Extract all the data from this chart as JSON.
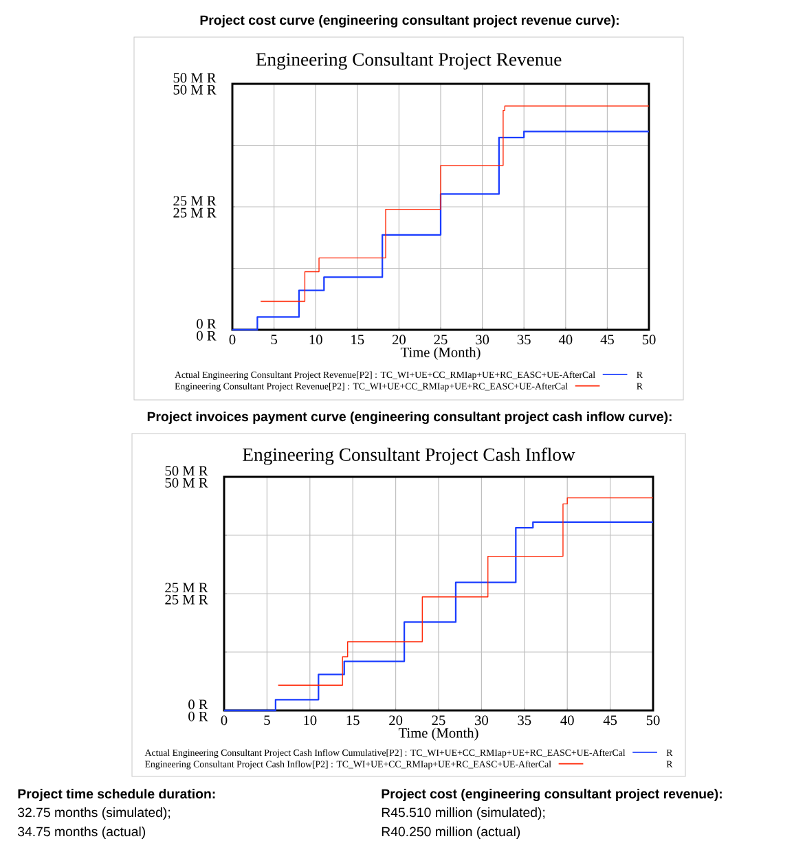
{
  "chart_data": [
    {
      "type": "step",
      "title": "Project cost curve (engineering consultant project revenue curve):",
      "subtitle": "Engineering Consultant Project Revenue",
      "xlabel": "Time (Month)",
      "xlim": [
        0,
        50
      ],
      "xticks": [
        0,
        5,
        10,
        15,
        20,
        25,
        30,
        35,
        40,
        45,
        50
      ],
      "ylim": [
        0,
        50
      ],
      "yticks": [
        {
          "value": 0,
          "label": "0 R"
        },
        {
          "value": 12.5,
          "label": null
        },
        {
          "value": 25,
          "label": "25 M R"
        },
        {
          "value": 37.5,
          "label": null
        },
        {
          "value": 50,
          "label": "50 M R"
        }
      ],
      "y2lim": [
        0,
        50
      ],
      "y2ticks": [
        {
          "value": 0,
          "label": "0 R"
        },
        {
          "value": 12.5,
          "label": null
        },
        {
          "value": 25,
          "label": "25 M R"
        },
        {
          "value": 37.5,
          "label": null
        },
        {
          "value": 50,
          "label": "50 M R"
        }
      ],
      "grid": true,
      "legend": "bottom",
      "annotations": [
        "R",
        "R"
      ],
      "series": [
        {
          "name": "Actual Engineering Consultant Project Revenue[P2] : TC_WI+UE+CC_RMIap+UE+RC_EASC+UE-AfterCal",
          "color": "#1a3cff",
          "axis": "y",
          "x": [
            0,
            3,
            8,
            11,
            18,
            25,
            32,
            35,
            50
          ],
          "values": [
            0,
            2.6,
            8.0,
            10.7,
            19.3,
            27.6,
            39.1,
            40.3,
            40.3
          ]
        },
        {
          "name": "Engineering Consultant Project Revenue[P2] : TC_WI+UE+CC_RMIap+UE+RC_EASC+UE-AfterCal",
          "color": "#ff2200",
          "axis": "y2",
          "x": [
            3.4,
            8.7,
            10.4,
            18.4,
            25,
            32.5,
            32.7,
            50
          ],
          "values": [
            5.8,
            11.8,
            14.6,
            24.5,
            33.4,
            44.6,
            45.5,
            45.5
          ]
        }
      ]
    },
    {
      "type": "step",
      "title": "Project invoices payment curve (engineering consultant project cash inflow curve):",
      "subtitle": "Engineering Consultant Project Cash Inflow",
      "xlabel": "Time (Month)",
      "xlim": [
        0,
        50
      ],
      "xticks": [
        0,
        5,
        10,
        15,
        20,
        25,
        30,
        35,
        40,
        45,
        50
      ],
      "ylim": [
        0,
        50
      ],
      "yticks": [
        {
          "value": 0,
          "label": "0 R"
        },
        {
          "value": 12.5,
          "label": null
        },
        {
          "value": 25,
          "label": "25 M R"
        },
        {
          "value": 37.5,
          "label": null
        },
        {
          "value": 50,
          "label": "50 M R"
        }
      ],
      "y2lim": [
        0,
        50
      ],
      "y2ticks": [
        {
          "value": 0,
          "label": "0 R"
        },
        {
          "value": 12.5,
          "label": null
        },
        {
          "value": 25,
          "label": "25 M R"
        },
        {
          "value": 37.5,
          "label": null
        },
        {
          "value": 50,
          "label": "50 M R"
        }
      ],
      "grid": true,
      "legend": "bottom",
      "annotations": [
        "R",
        "R"
      ],
      "series": [
        {
          "name": "Actual Engineering Consultant Project Cash Inflow Cumulative[P2] : TC_WI+UE+CC_RMIap+UE+RC_EASC+UE-AfterCal",
          "color": "#1a3cff",
          "axis": "y",
          "x": [
            0,
            6,
            11,
            14,
            21,
            27,
            34,
            36,
            50
          ],
          "values": [
            0,
            2.3,
            7.7,
            10.5,
            18.9,
            27.4,
            39.1,
            40.3,
            40.3
          ]
        },
        {
          "name": "Engineering Consultant Project Cash Inflow[P2] : TC_WI+UE+CC_RMIap+UE+RC_EASC+UE-AfterCal",
          "color": "#ff2200",
          "axis": "y2",
          "x": [
            6.3,
            13.8,
            14.4,
            23.1,
            30.75,
            39.5,
            40,
            50
          ],
          "values": [
            5.4,
            11.5,
            14.7,
            24.3,
            33.0,
            44.2,
            45.5,
            45.5
          ]
        }
      ]
    },
    {
      "type": "other",
      "annotations": [
        "Project time schedule duration:",
        "32.75 months (simulated);",
        "34.75 months (actual)",
        "Project cost (engineering consultant project revenue):",
        "R45.510 million (simulated);",
        "R40.250 million (actual)"
      ]
    }
  ]
}
